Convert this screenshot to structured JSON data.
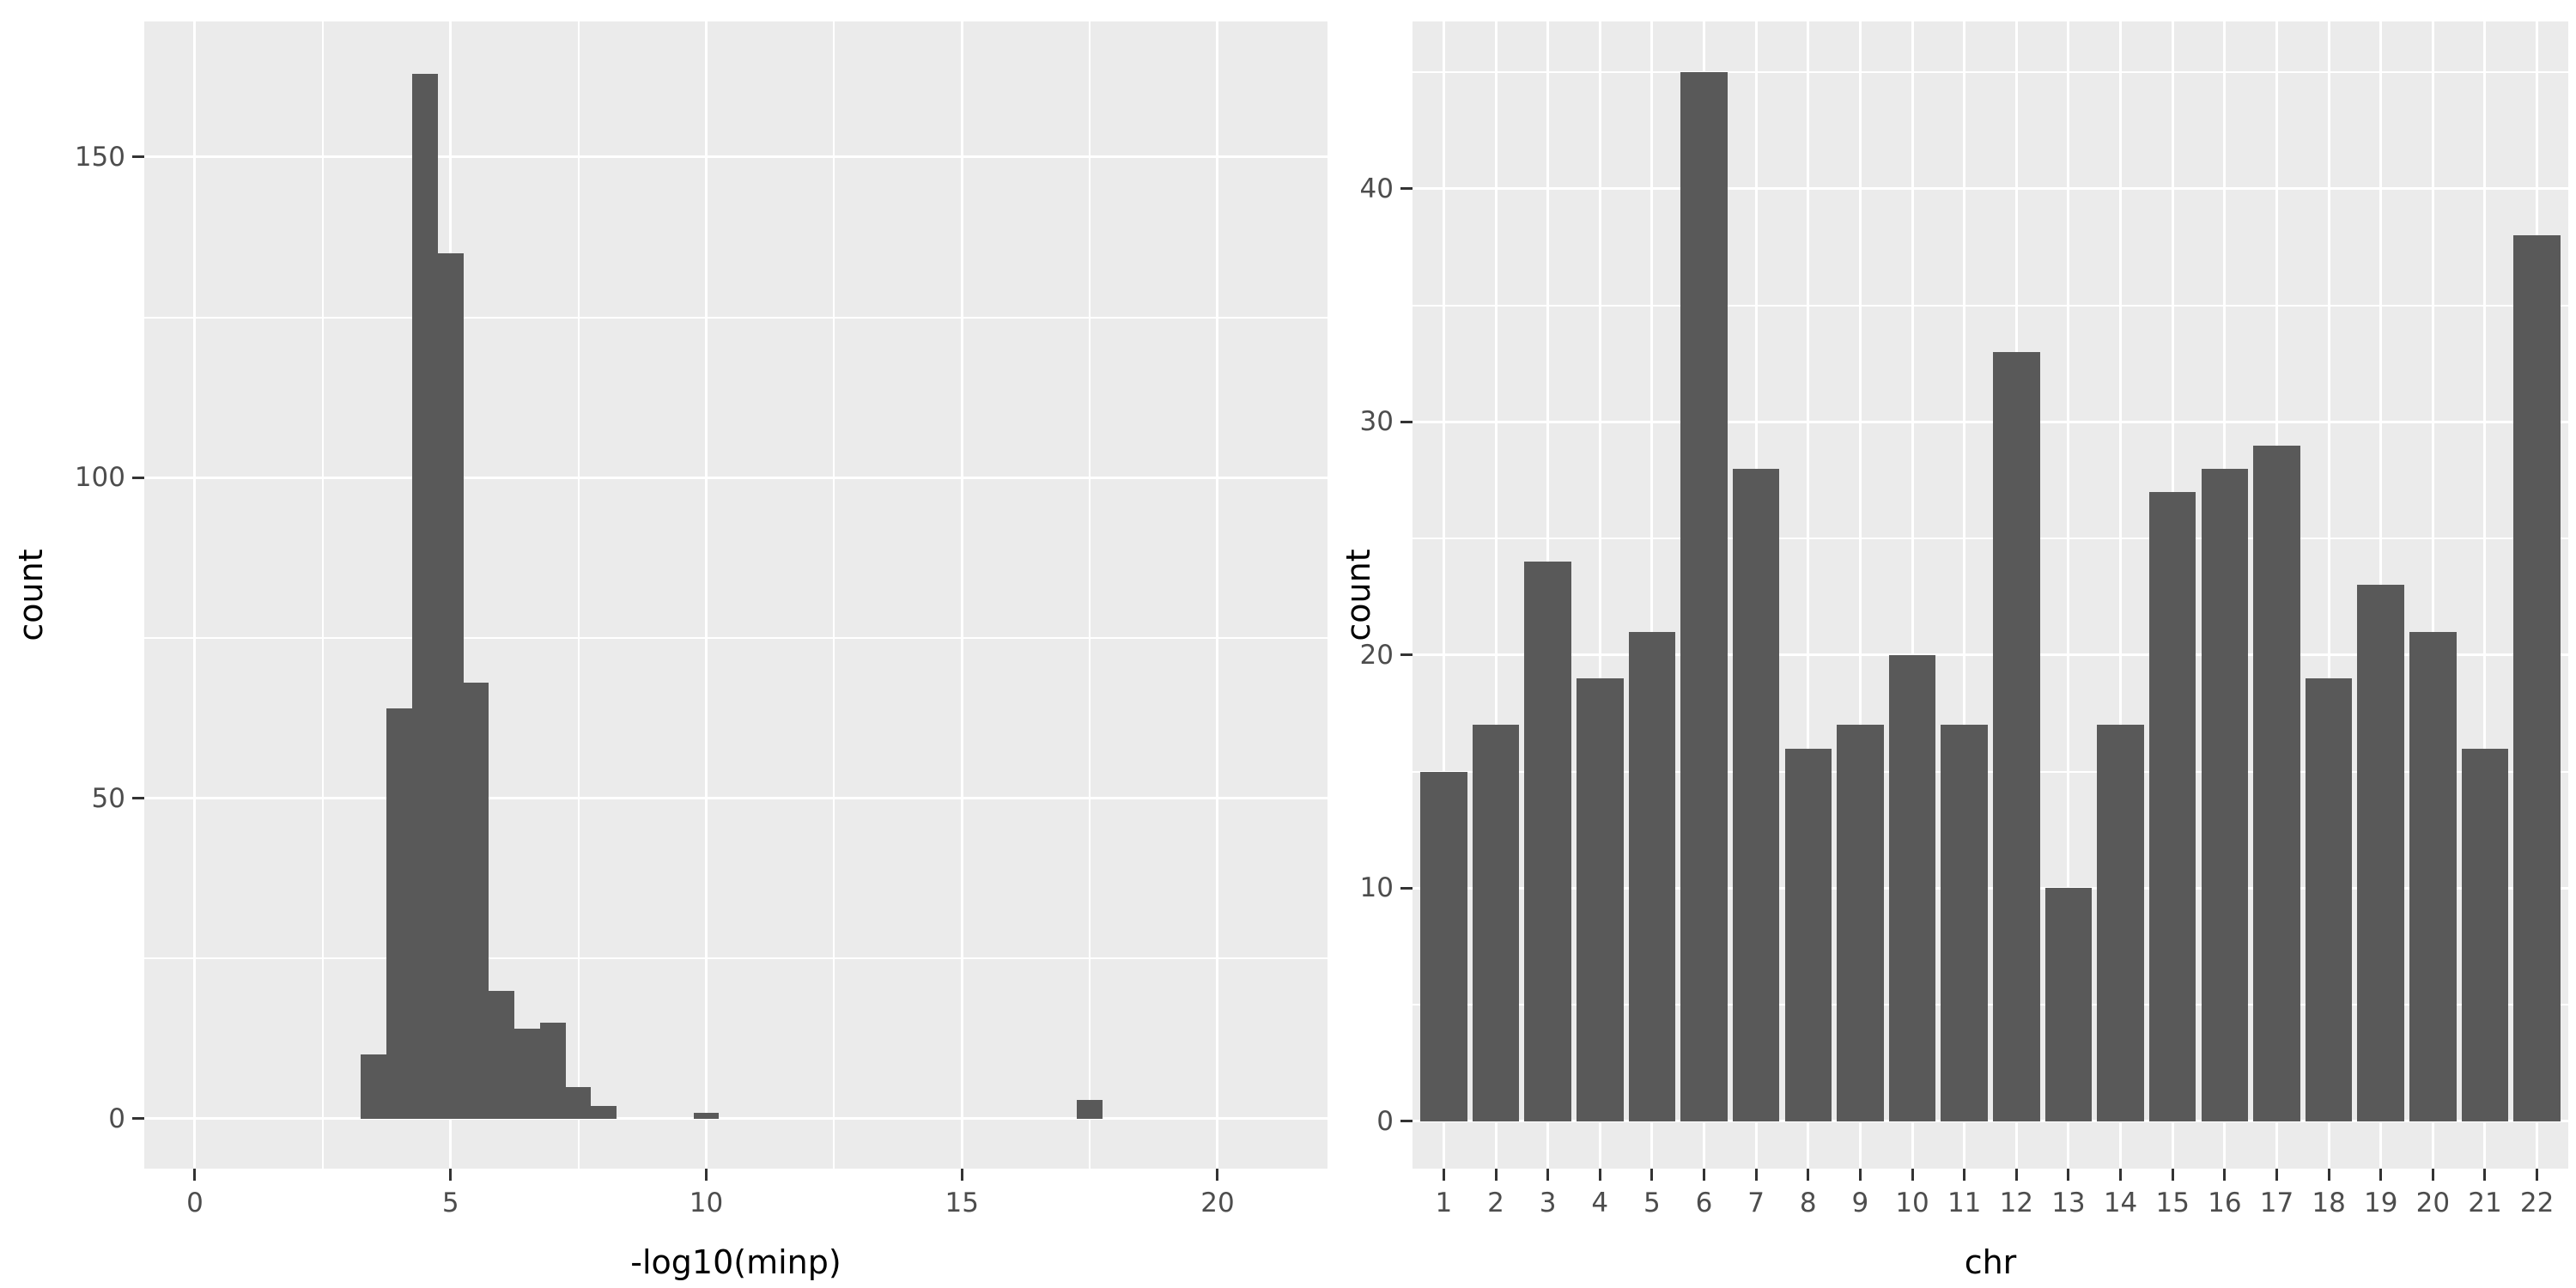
{
  "figure": {
    "background": "#FFFFFF"
  },
  "colors": {
    "bar_fill": "#595959",
    "panel_background": "#EBEBEB",
    "gridline": "#FFFFFF",
    "tick_text": "#4D4D4D",
    "axis_title_text": "#000000",
    "tick_mark": "#333333"
  },
  "chart_data": [
    {
      "type": "bar",
      "subtype": "histogram",
      "title": "",
      "xlabel": "-log10(minp)",
      "ylabel": "count",
      "bin_width": 0.5,
      "bin_centers": [
        3.5,
        4.0,
        4.5,
        5.0,
        5.5,
        6.0,
        6.5,
        7.0,
        7.5,
        8.0,
        10.0,
        17.5
      ],
      "values": [
        10,
        64,
        163,
        135,
        68,
        20,
        14,
        15,
        5,
        2,
        1,
        3
      ],
      "x_ticks": [
        0,
        5,
        10,
        15,
        20
      ],
      "x_tick_labels": [
        "0",
        "5",
        "10",
        "15",
        "20"
      ],
      "x_minor": [
        2.5,
        7.5,
        12.5,
        17.5
      ],
      "y_ticks": [
        0,
        50,
        100,
        150
      ],
      "y_tick_labels": [
        "0",
        "50",
        "100",
        "150"
      ],
      "y_minor": [
        25,
        75,
        125
      ],
      "xlim": [
        -0.99,
        22.15
      ],
      "ylim": [
        -7.77,
        171.16
      ],
      "grid": "on",
      "legend": "none"
    },
    {
      "type": "bar",
      "subtype": "categorical",
      "title": "",
      "xlabel": "chr",
      "ylabel": "count",
      "categories": [
        "1",
        "2",
        "3",
        "4",
        "5",
        "6",
        "7",
        "8",
        "9",
        "10",
        "11",
        "12",
        "13",
        "14",
        "15",
        "16",
        "17",
        "18",
        "19",
        "20",
        "21",
        "22"
      ],
      "values": [
        15,
        17,
        24,
        19,
        21,
        45,
        28,
        16,
        17,
        20,
        17,
        33,
        10,
        17,
        27,
        28,
        29,
        19,
        23,
        21,
        16,
        38
      ],
      "y_ticks": [
        0,
        10,
        20,
        30,
        40
      ],
      "y_tick_labels": [
        "0",
        "10",
        "20",
        "30",
        "40"
      ],
      "y_minor": [
        5,
        15,
        25,
        35,
        45
      ],
      "ylim": [
        -2.03,
        47.18
      ],
      "band_padding": 0.6,
      "bar_width_fraction": 0.9,
      "grid": "on",
      "legend": "none"
    }
  ]
}
